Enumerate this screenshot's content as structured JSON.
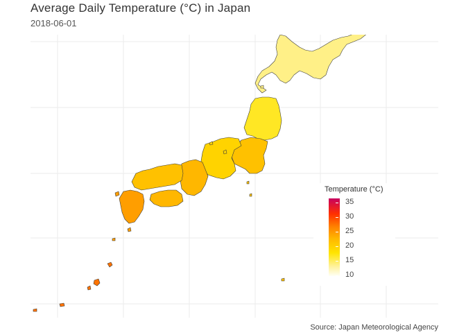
{
  "title": "Average Daily Temperature (°C) in Japan",
  "subtitle": "2018-06-01",
  "caption": "Source: Japan Meteorological Agency",
  "legend": {
    "title": "Temperature (°C)",
    "ticks": [
      "35",
      "30",
      "25",
      "20",
      "15",
      "10"
    ],
    "range": [
      9,
      36
    ]
  },
  "colors": {
    "low": "#fffff5",
    "mid": "#ffe400",
    "high": "#c80060",
    "border": "#3c3c3c"
  },
  "regions": [
    {
      "name": "Hokkaido",
      "temp": 13
    },
    {
      "name": "Tohoku",
      "temp": 16
    },
    {
      "name": "Kanto",
      "temp": 21
    },
    {
      "name": "Chubu",
      "temp": 19
    },
    {
      "name": "Kansai",
      "temp": 22
    },
    {
      "name": "Chugoku",
      "temp": 21
    },
    {
      "name": "Shikoku",
      "temp": 22
    },
    {
      "name": "Kyushu",
      "temp": 24
    },
    {
      "name": "Okinawa",
      "temp": 27
    }
  ]
}
